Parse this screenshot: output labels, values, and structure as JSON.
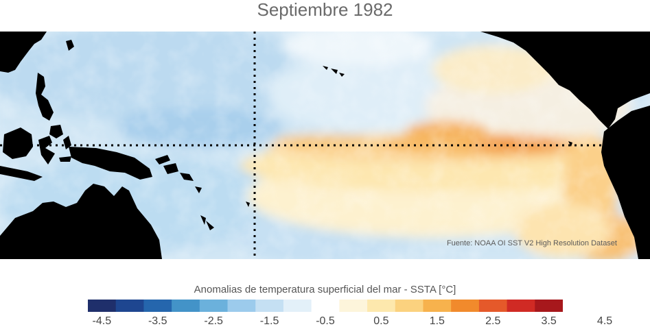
{
  "title": "Septiembre 1982",
  "source_note": "Fuente: NOAA OI SST V2 High Resolution Dataset",
  "colorbar": {
    "label": "Anomalias de temperatura superficial del mar - SSTA  [°C]",
    "tick_labels": [
      "-4.5",
      "-3.5",
      "-2.5",
      "-1.5",
      "-0.5",
      "0.5",
      "1.5",
      "2.5",
      "3.5",
      "4.5"
    ],
    "colors": [
      "#1f2f6b",
      "#1e4690",
      "#2566ad",
      "#4393c8",
      "#6bb1dc",
      "#9ccbec",
      "#c5e0f3",
      "#e3f0f9",
      "#ffffff",
      "#fdf5db",
      "#fde8ad",
      "#fbd27f",
      "#f7b24d",
      "#f18a2c",
      "#e5592a",
      "#d02a24",
      "#a7181c"
    ]
  },
  "map": {
    "land_color": "#000000",
    "markers": [
      "equator-line",
      "dateline-line"
    ]
  }
}
